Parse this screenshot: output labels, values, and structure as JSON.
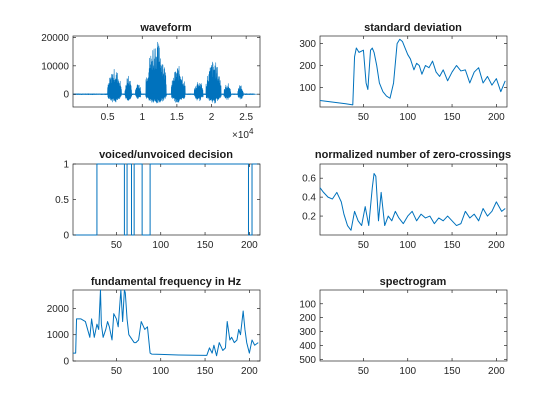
{
  "colors": {
    "line": "#0072BD",
    "axis": "#262626",
    "background": "#ffffff"
  },
  "chart_data": [
    {
      "id": "waveform",
      "type": "line",
      "title": "waveform",
      "xlabel": "",
      "ylabel": "",
      "x_unit_label": "×10^4",
      "x_exponent": "4",
      "xlim": [
        0,
        2.7
      ],
      "ylim": [
        -4500,
        20500
      ],
      "xticks": [
        0.5,
        1,
        1.5,
        2,
        2.5
      ],
      "xtick_labels": [
        "0.5",
        "1",
        "1.5",
        "2",
        "2.5"
      ],
      "yticks": [
        0,
        10000,
        20000
      ],
      "ytick_labels": [
        "0",
        "10000",
        "20000"
      ],
      "bursts": [
        {
          "x0": 0.5,
          "x1": 0.7,
          "amp": 9000,
          "neg": 3000
        },
        {
          "x0": 0.75,
          "x1": 0.85,
          "amp": 6500,
          "neg": 2600
        },
        {
          "x0": 0.9,
          "x1": 0.98,
          "amp": 4500,
          "neg": 2000
        },
        {
          "x0": 1.05,
          "x1": 1.35,
          "amp": 19000,
          "neg": 3500
        },
        {
          "x0": 1.42,
          "x1": 1.62,
          "amp": 10000,
          "neg": 3200
        },
        {
          "x0": 1.75,
          "x1": 1.88,
          "amp": 5000,
          "neg": 2500
        },
        {
          "x0": 1.92,
          "x1": 2.14,
          "amp": 12000,
          "neg": 3300
        },
        {
          "x0": 2.18,
          "x1": 2.28,
          "amp": 4000,
          "neg": 2000
        },
        {
          "x0": 2.38,
          "x1": 2.46,
          "amp": 3500,
          "neg": 1800
        }
      ]
    },
    {
      "id": "std",
      "type": "line",
      "title": "standard deviation",
      "xlim": [
        1,
        212
      ],
      "ylim": [
        10,
        335
      ],
      "xticks": [
        50,
        100,
        150,
        200
      ],
      "xtick_labels": [
        "50",
        "100",
        "150",
        "200"
      ],
      "yticks": [
        100,
        200,
        300
      ],
      "ytick_labels": [
        "100",
        "200",
        "300"
      ],
      "x": [
        1,
        10,
        20,
        30,
        38,
        40,
        42,
        45,
        50,
        53,
        55,
        58,
        60,
        62,
        65,
        68,
        72,
        76,
        80,
        84,
        88,
        91,
        94,
        97,
        100,
        103,
        107,
        110,
        113,
        116,
        120,
        124,
        128,
        132,
        136,
        140,
        145,
        150,
        155,
        160,
        165,
        170,
        175,
        180,
        185,
        190,
        195,
        200,
        205,
        210
      ],
      "y": [
        40,
        35,
        30,
        25,
        20,
        240,
        280,
        260,
        270,
        120,
        90,
        270,
        280,
        260,
        200,
        120,
        80,
        60,
        50,
        120,
        300,
        320,
        310,
        280,
        250,
        230,
        180,
        210,
        200,
        160,
        200,
        190,
        220,
        170,
        150,
        180,
        130,
        170,
        200,
        175,
        180,
        120,
        170,
        190,
        120,
        150,
        110,
        140,
        80,
        130
      ]
    },
    {
      "id": "voiced",
      "type": "line",
      "title": "voiced/unvoiced decision",
      "xlim": [
        1,
        212
      ],
      "ylim": [
        0,
        1
      ],
      "xticks": [
        50,
        100,
        150,
        200
      ],
      "xtick_labels": [
        "50",
        "100",
        "150",
        "200"
      ],
      "yticks": [
        0,
        0.5,
        1
      ],
      "ytick_labels": [
        "0",
        "0.5",
        "1"
      ],
      "x": [
        1,
        28,
        28,
        59,
        59,
        62,
        62,
        67,
        67,
        70,
        70,
        79,
        79,
        88,
        88,
        90,
        90,
        199,
        199,
        203,
        203,
        212
      ],
      "y": [
        0,
        0,
        1,
        1,
        0,
        0,
        1,
        1,
        0,
        0,
        1,
        1,
        0,
        0,
        1,
        1,
        1,
        1,
        0,
        0,
        1,
        1
      ]
    },
    {
      "id": "zcr",
      "type": "line",
      "title": "normalized number of zero-crossings",
      "xlim": [
        1,
        212
      ],
      "ylim": [
        0,
        0.75
      ],
      "xticks": [
        50,
        100,
        150,
        200
      ],
      "xtick_labels": [
        "50",
        "100",
        "150",
        "200"
      ],
      "yticks": [
        0.2,
        0.4,
        0.6
      ],
      "ytick_labels": [
        "0.2",
        "0.4",
        "0.6"
      ],
      "x": [
        1,
        5,
        10,
        15,
        20,
        25,
        28,
        32,
        36,
        40,
        44,
        48,
        52,
        56,
        60,
        62,
        64,
        67,
        70,
        74,
        78,
        82,
        86,
        90,
        95,
        100,
        105,
        110,
        115,
        120,
        125,
        130,
        135,
        140,
        145,
        150,
        155,
        160,
        165,
        170,
        175,
        180,
        185,
        190,
        195,
        200,
        203,
        206,
        210
      ],
      "y": [
        0.5,
        0.45,
        0.4,
        0.38,
        0.45,
        0.35,
        0.22,
        0.1,
        0.05,
        0.25,
        0.15,
        0.1,
        0.3,
        0.1,
        0.5,
        0.65,
        0.62,
        0.15,
        0.45,
        0.1,
        0.2,
        0.15,
        0.25,
        0.18,
        0.12,
        0.2,
        0.25,
        0.15,
        0.22,
        0.18,
        0.2,
        0.12,
        0.18,
        0.15,
        0.2,
        0.15,
        0.1,
        0.12,
        0.25,
        0.18,
        0.22,
        0.15,
        0.28,
        0.2,
        0.25,
        0.35,
        0.3,
        0.25,
        0.28
      ]
    },
    {
      "id": "f0",
      "type": "line",
      "title": "fundamental frequency in Hz",
      "xlim": [
        1,
        212
      ],
      "ylim": [
        0,
        2700
      ],
      "xticks": [
        50,
        100,
        150,
        200
      ],
      "xtick_labels": [
        "50",
        "100",
        "150",
        "200"
      ],
      "yticks": [
        0,
        1000,
        2000
      ],
      "ytick_labels": [
        "0",
        "1000",
        "2000"
      ],
      "x": [
        1,
        4,
        5,
        10,
        15,
        20,
        22,
        25,
        28,
        30,
        32,
        33,
        35,
        38,
        40,
        42,
        45,
        47,
        50,
        52,
        55,
        57,
        59,
        60,
        62,
        64,
        66,
        70,
        72,
        75,
        78,
        82,
        85,
        88,
        90,
        100,
        120,
        140,
        152,
        155,
        158,
        160,
        163,
        166,
        170,
        173,
        175,
        178,
        180,
        183,
        186,
        188,
        190,
        193,
        195,
        197,
        200,
        203,
        206,
        210
      ],
      "y": [
        300,
        300,
        1600,
        1600,
        1500,
        900,
        1600,
        900,
        1400,
        1200,
        2700,
        1400,
        900,
        1200,
        1500,
        1300,
        800,
        1800,
        1600,
        1300,
        2700,
        1500,
        2700,
        2600,
        1600,
        1000,
        900,
        700,
        700,
        800,
        1500,
        1200,
        1300,
        300,
        260,
        250,
        230,
        220,
        215,
        500,
        300,
        600,
        200,
        700,
        400,
        500,
        1500,
        800,
        900,
        700,
        800,
        1200,
        1000,
        1900,
        1200,
        700,
        300,
        800,
        600,
        700
      ]
    },
    {
      "id": "spectrogram",
      "type": "heatmap",
      "title": "spectrogram",
      "xlim": [
        1,
        212
      ],
      "ylim": [
        1,
        512
      ],
      "xticks": [
        50,
        100,
        150,
        200
      ],
      "xtick_labels": [
        "50",
        "100",
        "150",
        "200"
      ],
      "yticks": [
        100,
        200,
        300,
        400,
        500
      ],
      "ytick_labels": [
        "100",
        "200",
        "300",
        "400",
        "500"
      ],
      "y_reversed": true,
      "colormap": "gray"
    }
  ]
}
